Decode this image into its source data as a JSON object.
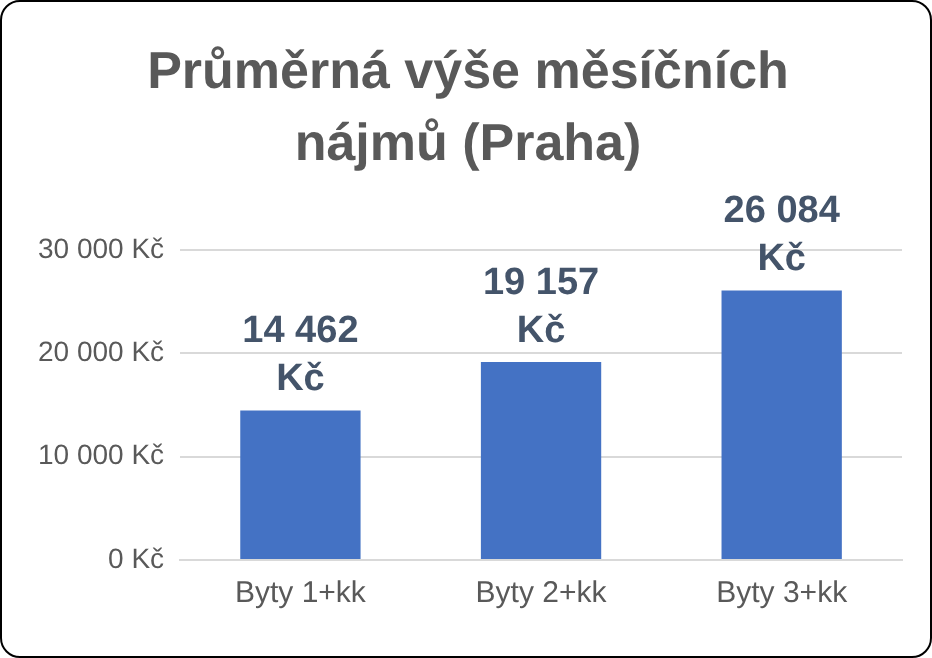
{
  "chart_data": {
    "type": "bar",
    "title": "Průměrná výše měsíčních nájmů (Praha)",
    "categories": [
      "Byty 1+kk",
      "Byty 2+kk",
      "Byty 3+kk"
    ],
    "values": [
      14462,
      19157,
      26084
    ],
    "value_labels": [
      "14 462 Kč",
      "19 157 Kč",
      "26 084 Kč"
    ],
    "color": "#4472c4",
    "ylim": [
      0,
      30000
    ],
    "yticks": [
      {
        "value": 0,
        "label": "0 Kč"
      },
      {
        "value": 10000,
        "label": "10 000 Kč"
      },
      {
        "value": 20000,
        "label": "20 000 Kč"
      },
      {
        "value": 30000,
        "label": "30 000 Kč"
      }
    ],
    "grid": "y",
    "legend": false
  }
}
